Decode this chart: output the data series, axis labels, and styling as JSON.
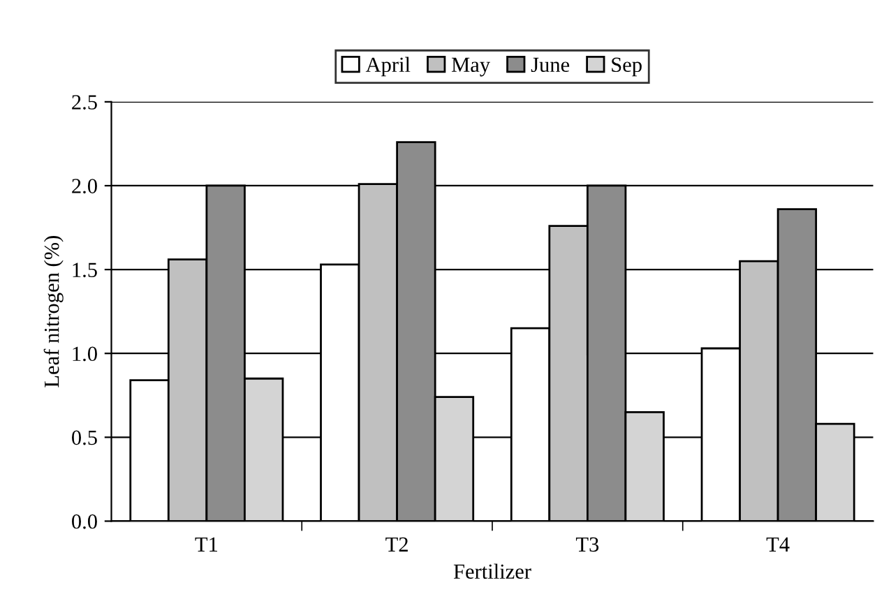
{
  "chart_data": {
    "type": "bar",
    "xlabel": "Fertilizer",
    "ylabel": "Leaf nitrogen (%)",
    "categories": [
      "T1",
      "T2",
      "T3",
      "T4"
    ],
    "series": [
      {
        "name": "April",
        "color": "#ffffff",
        "values": [
          0.84,
          1.53,
          1.15,
          1.03
        ]
      },
      {
        "name": "May",
        "color": "#c0c0c0",
        "values": [
          1.56,
          2.01,
          1.76,
          1.55
        ]
      },
      {
        "name": "June",
        "color": "#8c8c8c",
        "values": [
          2.0,
          2.26,
          2.0,
          1.86
        ]
      },
      {
        "name": "Sep",
        "color": "#d4d4d4",
        "values": [
          0.85,
          0.74,
          0.65,
          0.58
        ]
      }
    ],
    "ylim": [
      0,
      2.5
    ],
    "yticks": [
      {
        "value": 0,
        "label": "0.0"
      },
      {
        "value": 0.5,
        "label": "0.5"
      },
      {
        "value": 1.0,
        "label": "1.0"
      },
      {
        "value": 1.5,
        "label": "1.5"
      },
      {
        "value": 2.0,
        "label": "2.0"
      },
      {
        "value": 2.5,
        "label": "2.5"
      }
    ],
    "grid": "y",
    "legend": "top"
  }
}
